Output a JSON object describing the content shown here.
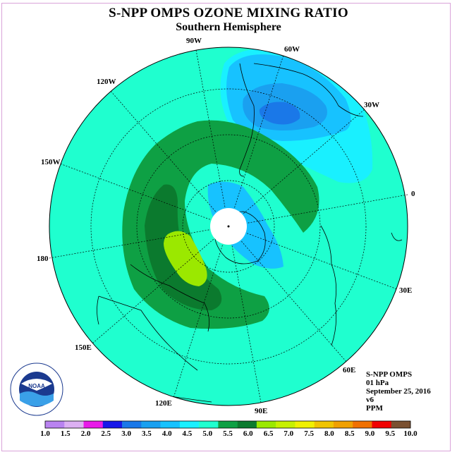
{
  "header": {
    "title": "S-NPP OMPS OZONE MIXING RATIO",
    "subtitle": "Southern Hemisphere"
  },
  "longitude_labels": [
    {
      "id": "lon-90w",
      "text": "90W"
    },
    {
      "id": "lon-60w",
      "text": "60W"
    },
    {
      "id": "lon-30w",
      "text": "30W"
    },
    {
      "id": "lon-0",
      "text": "0"
    },
    {
      "id": "lon-30e",
      "text": "30E"
    },
    {
      "id": "lon-60e",
      "text": "60E"
    },
    {
      "id": "lon-90e",
      "text": "90E"
    },
    {
      "id": "lon-120e",
      "text": "120E"
    },
    {
      "id": "lon-150e",
      "text": "150E"
    },
    {
      "id": "lon-180",
      "text": "180"
    },
    {
      "id": "lon-150w",
      "text": "150W"
    },
    {
      "id": "lon-120w",
      "text": "120W"
    }
  ],
  "info": {
    "instrument": "S-NPP OMPS",
    "level": "01 hPa",
    "date": "September 25, 2016",
    "version": "v6",
    "units": "PPM"
  },
  "logo": {
    "text": "NOAA",
    "ring_text": "NATIONAL OCEANIC AND ATMOSPHERIC ADMINISTRATION · U.S. DEPARTMENT OF COMMERCE"
  },
  "colorbar": {
    "labels": [
      "1.0",
      "1.5",
      "2.0",
      "2.5",
      "3.0",
      "3.5",
      "4.0",
      "4.5",
      "5.0",
      "5.5",
      "6.0",
      "6.5",
      "7.0",
      "7.5",
      "8.0",
      "8.5",
      "9.0",
      "9.5",
      "10.0"
    ],
    "colors": [
      "#b983f0",
      "#dcb0f2",
      "#e81be8",
      "#1818e8",
      "#1a78e8",
      "#1aa0f0",
      "#17c2ff",
      "#19f0ff",
      "#1fffcf",
      "#0ea044",
      "#0b7a2e",
      "#9be800",
      "#c7f000",
      "#f0f000",
      "#f0c400",
      "#f0a000",
      "#f07000",
      "#f00000",
      "#7a5030"
    ]
  }
}
